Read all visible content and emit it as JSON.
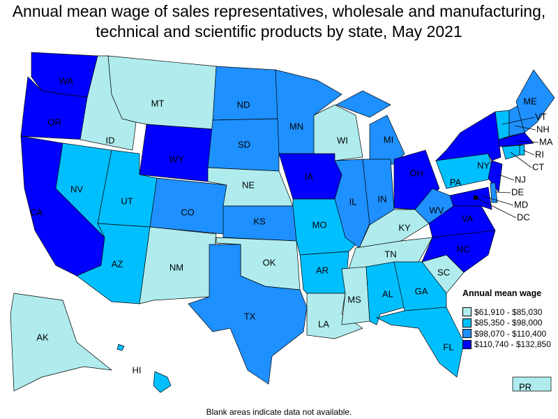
{
  "title": "Annual mean wage of sales representatives, wholesale and manufacturing, technical and scientific products by state, May 2021",
  "footnote": "Blank areas indicate data not available.",
  "legend": {
    "title": "Annual mean wage",
    "items": [
      {
        "label": "$61,910 - $85,030",
        "color": "#b0ecee"
      },
      {
        "label": "$85,350 - $98,000",
        "color": "#00bfff"
      },
      {
        "label": "$98,070 - $110,400",
        "color": "#1e90ff"
      },
      {
        "label": "$110,740 - $132,850",
        "color": "#0000ff"
      }
    ]
  },
  "states": {
    "WA": 3,
    "OR": 3,
    "CA": 3,
    "WY": 3,
    "IA": 3,
    "OH": 3,
    "NY": 3,
    "NJ": 3,
    "MA": 3,
    "MD": 3,
    "VA": 3,
    "NC": 3,
    "ND": 2,
    "SD": 2,
    "MN": 2,
    "MI": 2,
    "IN": 2,
    "IL": 2,
    "CO": 2,
    "KS": 2,
    "TX": 2,
    "ME": 2,
    "NH": 2,
    "WV": 2,
    "DE": 2,
    "NV": 1,
    "UT": 1,
    "AZ": 1,
    "MO": 1,
    "AR": 1,
    "AL": 1,
    "GA": 1,
    "FL": 1,
    "PA": 1,
    "VT": 1,
    "CT": 1,
    "RI": 1,
    "HI": 1,
    "MT": 0,
    "ID": 0,
    "NE": 0,
    "WI": 0,
    "NM": 0,
    "OK": 0,
    "KY": 0,
    "TN": 0,
    "MS": 0,
    "LA": 0,
    "SC": 0,
    "AK": 0,
    "PR": 0
  },
  "dc_label": "DC"
}
